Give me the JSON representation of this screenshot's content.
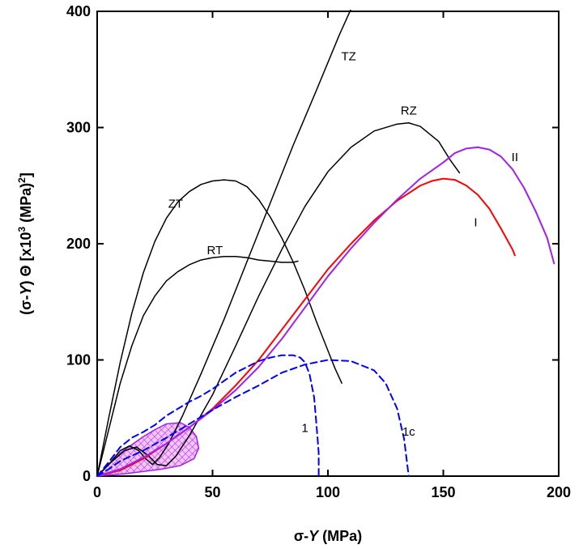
{
  "chart_data": {
    "type": "line",
    "xlabel": "σ-Y (MPa)",
    "xlabel_parts": {
      "a": "σ-",
      "b": "Y",
      "c": " (MPa)"
    },
    "ylabel_parts": {
      "a": "(σ-",
      "b": "Y",
      "c": ") Θ [x10",
      "sup1": "3",
      "d": " (MPa)",
      "sup2": "2",
      "e": "]"
    },
    "xlim": [
      0,
      200
    ],
    "ylim": [
      0,
      400
    ],
    "xticks": [
      "0",
      "50",
      "100",
      "150",
      "200"
    ],
    "yticks": [
      "0",
      "100",
      "200",
      "300",
      "400"
    ],
    "grid": false,
    "series": [
      {
        "name": "TZ",
        "color": "#000000",
        "style": "solid",
        "points": [
          [
            0,
            0
          ],
          [
            5,
            10
          ],
          [
            10,
            22
          ],
          [
            14,
            26
          ],
          [
            18,
            22
          ],
          [
            21,
            15
          ],
          [
            24,
            10
          ],
          [
            27,
            16
          ],
          [
            31,
            28
          ],
          [
            37,
            52
          ],
          [
            45,
            88
          ],
          [
            55,
            135
          ],
          [
            65,
            185
          ],
          [
            75,
            235
          ],
          [
            85,
            285
          ],
          [
            95,
            332
          ],
          [
            105,
            380
          ],
          [
            110,
            402
          ]
        ]
      },
      {
        "name": "RZ",
        "color": "#000000",
        "style": "solid",
        "points": [
          [
            0,
            0
          ],
          [
            6,
            12
          ],
          [
            12,
            22
          ],
          [
            17,
            25
          ],
          [
            22,
            18
          ],
          [
            26,
            10
          ],
          [
            30,
            9
          ],
          [
            34,
            17
          ],
          [
            40,
            35
          ],
          [
            50,
            70
          ],
          [
            60,
            112
          ],
          [
            70,
            155
          ],
          [
            80,
            195
          ],
          [
            90,
            232
          ],
          [
            100,
            262
          ],
          [
            110,
            283
          ],
          [
            120,
            297
          ],
          [
            130,
            303
          ],
          [
            135,
            304
          ],
          [
            140,
            301
          ],
          [
            148,
            288
          ],
          [
            153,
            272
          ],
          [
            157,
            261
          ]
        ]
      },
      {
        "name": "ZT",
        "color": "#000000",
        "style": "solid",
        "points": [
          [
            0,
            0
          ],
          [
            5,
            50
          ],
          [
            10,
            98
          ],
          [
            15,
            140
          ],
          [
            20,
            175
          ],
          [
            25,
            202
          ],
          [
            30,
            222
          ],
          [
            35,
            236
          ],
          [
            40,
            245
          ],
          [
            45,
            251
          ],
          [
            50,
            254
          ],
          [
            55,
            255
          ],
          [
            60,
            254
          ],
          [
            65,
            249
          ],
          [
            70,
            238
          ],
          [
            75,
            223
          ],
          [
            80,
            205
          ],
          [
            85,
            184
          ],
          [
            90,
            160
          ],
          [
            95,
            133
          ],
          [
            100,
            108
          ],
          [
            103,
            93
          ],
          [
            106,
            80
          ]
        ]
      },
      {
        "name": "RT",
        "color": "#000000",
        "style": "solid",
        "points": [
          [
            0,
            0
          ],
          [
            5,
            40
          ],
          [
            10,
            80
          ],
          [
            15,
            112
          ],
          [
            20,
            138
          ],
          [
            25,
            155
          ],
          [
            30,
            168
          ],
          [
            35,
            176
          ],
          [
            40,
            182
          ],
          [
            45,
            186
          ],
          [
            50,
            188
          ],
          [
            55,
            189
          ],
          [
            60,
            189
          ],
          [
            65,
            188
          ],
          [
            70,
            186
          ],
          [
            75,
            185
          ],
          [
            80,
            184
          ],
          [
            85,
            184
          ],
          [
            87,
            185
          ]
        ]
      },
      {
        "name": "I",
        "color": "#ff0000",
        "style": "solid",
        "points": [
          [
            0,
            0
          ],
          [
            10,
            5
          ],
          [
            20,
            15
          ],
          [
            30,
            28
          ],
          [
            40,
            42
          ],
          [
            50,
            58
          ],
          [
            60,
            78
          ],
          [
            70,
            100
          ],
          [
            80,
            126
          ],
          [
            90,
            152
          ],
          [
            100,
            178
          ],
          [
            110,
            200
          ],
          [
            120,
            220
          ],
          [
            130,
            237
          ],
          [
            140,
            250
          ],
          [
            145,
            254
          ],
          [
            150,
            256
          ],
          [
            155,
            255
          ],
          [
            160,
            250
          ],
          [
            165,
            242
          ],
          [
            170,
            230
          ],
          [
            175,
            213
          ],
          [
            180,
            195
          ],
          [
            181,
            190
          ]
        ]
      },
      {
        "name": "II",
        "color": "#a020f0",
        "style": "solid",
        "points": [
          [
            0,
            0
          ],
          [
            10,
            6
          ],
          [
            20,
            16
          ],
          [
            30,
            28
          ],
          [
            40,
            42
          ],
          [
            50,
            57
          ],
          [
            60,
            74
          ],
          [
            70,
            94
          ],
          [
            80,
            118
          ],
          [
            90,
            145
          ],
          [
            100,
            172
          ],
          [
            110,
            196
          ],
          [
            120,
            218
          ],
          [
            130,
            238
          ],
          [
            140,
            256
          ],
          [
            150,
            270
          ],
          [
            155,
            278
          ],
          [
            160,
            282
          ],
          [
            165,
            283
          ],
          [
            170,
            281
          ],
          [
            175,
            275
          ],
          [
            180,
            264
          ],
          [
            185,
            248
          ],
          [
            190,
            228
          ],
          [
            195,
            205
          ],
          [
            198,
            183
          ]
        ]
      },
      {
        "name": "1",
        "color": "#0000ff",
        "style": "dashed",
        "points": [
          [
            0,
            0
          ],
          [
            5,
            12
          ],
          [
            10,
            25
          ],
          [
            15,
            33
          ],
          [
            20,
            38
          ],
          [
            25,
            44
          ],
          [
            30,
            52
          ],
          [
            35,
            58
          ],
          [
            40,
            64
          ],
          [
            45,
            69
          ],
          [
            50,
            75
          ],
          [
            55,
            82
          ],
          [
            60,
            89
          ],
          [
            65,
            94
          ],
          [
            70,
            99
          ],
          [
            75,
            102
          ],
          [
            80,
            104
          ],
          [
            85,
            104
          ],
          [
            88,
            102
          ],
          [
            90,
            98
          ],
          [
            92,
            88
          ],
          [
            94,
            68
          ],
          [
            95,
            45
          ],
          [
            96,
            20
          ],
          [
            96,
            0
          ]
        ]
      },
      {
        "name": "1c",
        "color": "#0000ff",
        "style": "dashed",
        "points": [
          [
            0,
            0
          ],
          [
            5,
            6
          ],
          [
            10,
            13
          ],
          [
            20,
            22
          ],
          [
            30,
            33
          ],
          [
            40,
            45
          ],
          [
            50,
            57
          ],
          [
            60,
            68
          ],
          [
            70,
            78
          ],
          [
            80,
            89
          ],
          [
            90,
            96
          ],
          [
            100,
            100
          ],
          [
            110,
            99
          ],
          [
            120,
            91
          ],
          [
            125,
            80
          ],
          [
            130,
            58
          ],
          [
            133,
            32
          ],
          [
            135,
            0
          ]
        ]
      }
    ],
    "annotations": [
      {
        "text": "TZ",
        "x": 109,
        "y": 358
      },
      {
        "text": "RZ",
        "x": 135,
        "y": 311
      },
      {
        "text": "II",
        "x": 181,
        "y": 271
      },
      {
        "text": "ZT",
        "x": 34,
        "y": 231
      },
      {
        "text": "RT",
        "x": 51,
        "y": 191
      },
      {
        "text": "I",
        "x": 164,
        "y": 215
      },
      {
        "text": "1",
        "x": 90,
        "y": 38
      },
      {
        "text": "1c",
        "x": 135,
        "y": 35
      }
    ],
    "shaded_region": {
      "fill": "#f2b8f2",
      "stroke": "#a020f0",
      "points": [
        [
          0,
          0
        ],
        [
          5,
          10
        ],
        [
          10,
          20
        ],
        [
          15,
          27
        ],
        [
          20,
          34
        ],
        [
          25,
          40
        ],
        [
          30,
          45
        ],
        [
          36,
          46
        ],
        [
          40,
          42
        ],
        [
          43,
          34
        ],
        [
          44,
          24
        ],
        [
          42,
          15
        ],
        [
          36,
          9
        ],
        [
          28,
          6
        ],
        [
          20,
          4
        ],
        [
          12,
          2
        ],
        [
          5,
          1
        ]
      ]
    }
  }
}
